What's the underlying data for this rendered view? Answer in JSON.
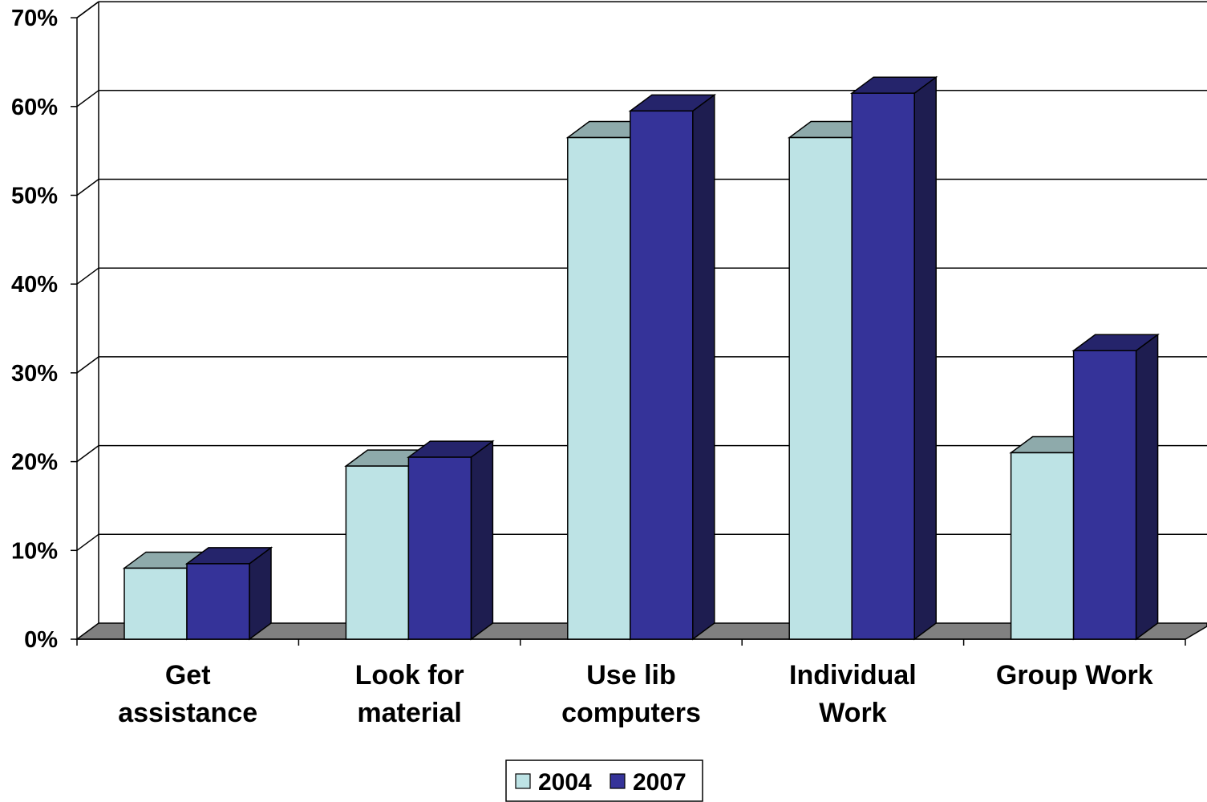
{
  "chart_data": {
    "type": "bar",
    "categories": [
      [
        "Get",
        "assistance"
      ],
      [
        "Look for",
        "material"
      ],
      [
        "Use lib",
        "computers"
      ],
      [
        "Individual",
        "Work"
      ],
      [
        "Group Work"
      ]
    ],
    "series": [
      {
        "name": "2004",
        "values": [
          8,
          19.5,
          56.5,
          56.5,
          21
        ],
        "color": "#bde3e5",
        "top_color": "#8eaaab",
        "side_color": "#5e8c8f"
      },
      {
        "name": "2007",
        "values": [
          8.5,
          20.5,
          59.5,
          61.5,
          32.5
        ],
        "color": "#353399",
        "top_color": "#25246b",
        "side_color": "#1e1d50"
      }
    ],
    "ylim": [
      0,
      70
    ],
    "ytick_labels": [
      "0%",
      "10%",
      "20%",
      "30%",
      "40%",
      "50%",
      "60%",
      "70%"
    ],
    "grid": true,
    "legend_position": "bottom-center",
    "floor_color": "#808080"
  }
}
